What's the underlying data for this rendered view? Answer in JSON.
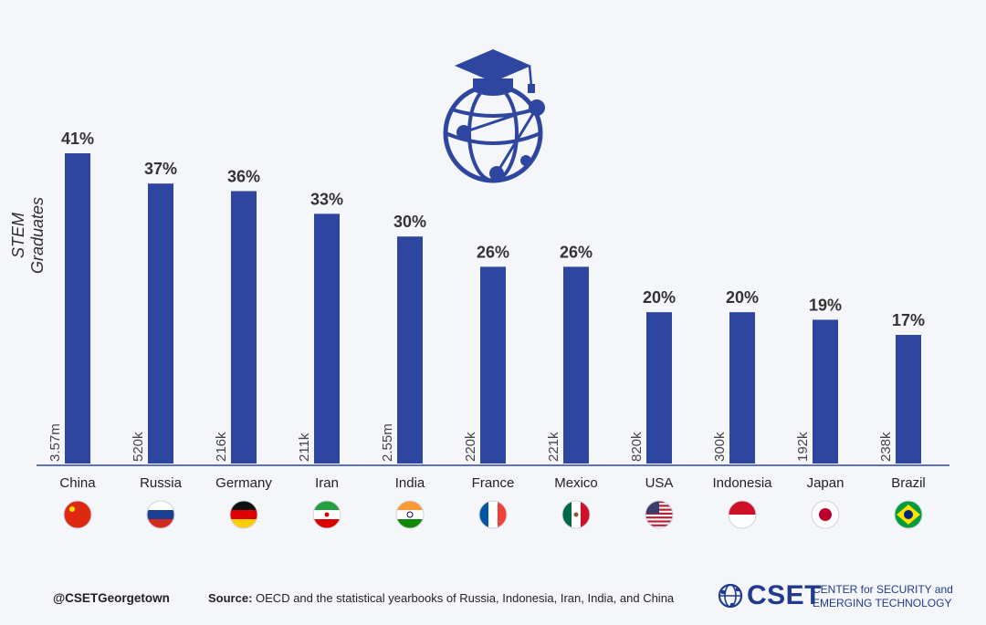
{
  "chart_data": {
    "type": "bar",
    "ylabel": "STEM Graduates",
    "ylim": [
      0,
      45
    ],
    "categories": [
      "China",
      "Russia",
      "Germany",
      "Iran",
      "India",
      "France",
      "Mexico",
      "USA",
      "Indonesia",
      "Japan",
      "Brazil"
    ],
    "values": [
      41,
      37,
      36,
      33,
      30,
      26,
      26,
      20,
      20,
      19,
      17
    ],
    "value_labels": [
      "41%",
      "37%",
      "36%",
      "33%",
      "30%",
      "26%",
      "26%",
      "20%",
      "20%",
      "19%",
      "17%"
    ],
    "counts": [
      "3.57m",
      "520k",
      "216k",
      "211k",
      "2.55m",
      "220k",
      "221k",
      "820k",
      "300k",
      "192k",
      "238k"
    ],
    "flags": [
      "china-flag",
      "russia-flag",
      "germany-flag",
      "iran-flag",
      "india-flag",
      "france-flag",
      "mexico-flag",
      "usa-flag",
      "indonesia-flag",
      "japan-flag",
      "brazil-flag"
    ],
    "bar_color": "#2e46a0"
  },
  "footer": {
    "handle": "@CSETGeorgetown",
    "source_label": "Source:",
    "source_text": " OECD and the statistical yearbooks of Russia, Indonesia, Iran, India, and China"
  },
  "logo": {
    "word": "CSET",
    "tagline": "CENTER for SECURITY and\nEMERGING TECHNOLOGY",
    "icon": "globe-network-icon",
    "color": "#1f3a8f"
  },
  "header_icon": "graduation-cap-globe-icon"
}
